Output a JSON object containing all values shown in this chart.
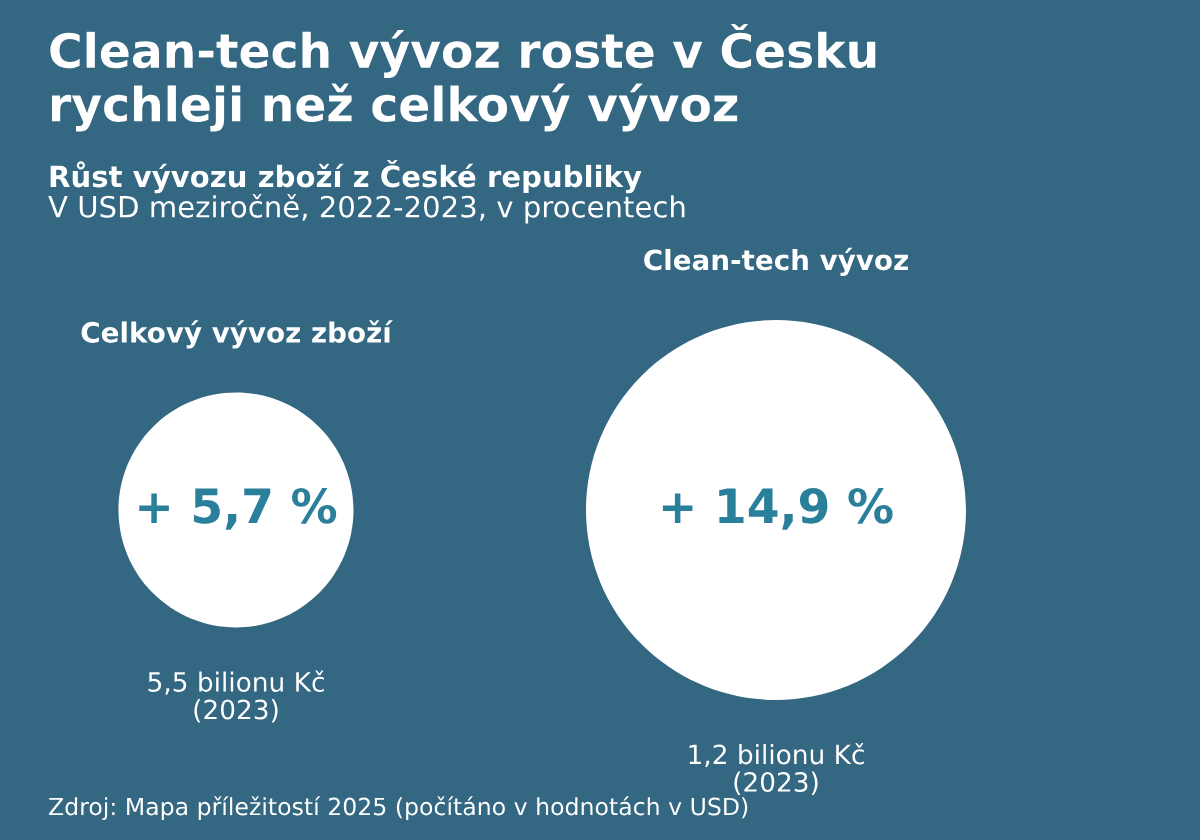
{
  "chart_data": {
    "type": "other",
    "title": "Clean-tech vývoz roste v Česku\nrychleji než celkový vývoz",
    "subtitle": "Růst vývozu zboží z České republiky\nV USD meziročně, 2022-2023, v procentech",
    "categories": [
      "Celkový vývoz zboží",
      "Clean-tech vývoz"
    ],
    "values": [
      5.7,
      14.9
    ],
    "value_labels": [
      "+ 5,7 %",
      "+ 14,9 %"
    ],
    "colors": [
      "#ffffff",
      "#ffffff"
    ],
    "annotations": [
      {
        "text": "5,5 bilionu Kč\n(2023)",
        "x": "Celkový vývoz zboží"
      },
      {
        "text": "1,2 bilionu Kč\n(2023)",
        "x": "Clean-tech vývoz"
      },
      "Zdroj: Mapa příležitostí 2025 (počítáno v hodnotách v USD)"
    ]
  }
}
